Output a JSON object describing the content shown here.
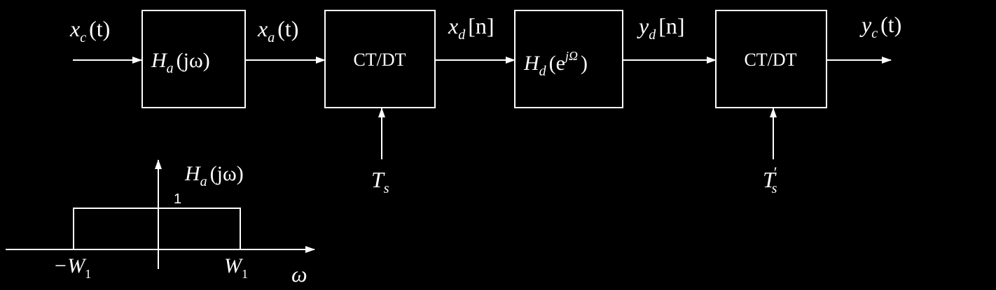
{
  "colors": {
    "background": "#000000",
    "foreground": "#ffffff"
  },
  "signals": {
    "x_c": {
      "main": "x",
      "sub": "c",
      "arg": "(t)"
    },
    "x_a": {
      "main": "x",
      "sub": "a",
      "arg": "(t)"
    },
    "x_d": {
      "main": "x",
      "sub": "d",
      "arg": "[n]"
    },
    "y_d": {
      "main": "y",
      "sub": "d",
      "arg": "[n]"
    },
    "y_c": {
      "main": "y",
      "sub": "c",
      "arg": "(t)"
    }
  },
  "blocks": {
    "analog_filter": {
      "main": "H",
      "sub": "a",
      "arg": "(jω)"
    },
    "ct_dt_1": {
      "label": "CT/DT"
    },
    "digital_filter": {
      "main": "H",
      "sub": "d",
      "open": "(e",
      "sup": "jΩ",
      "close": ")"
    },
    "ct_dt_2": {
      "label": "CT/DT"
    }
  },
  "sampling": {
    "ts1": {
      "main": "T",
      "sub": "s"
    },
    "ts2": {
      "main": "T",
      "prime": "′",
      "sub": "s"
    }
  },
  "response_plot": {
    "title": {
      "main": "H",
      "sub": "a",
      "arg": "(jω)"
    },
    "level_label": "1",
    "left_cutoff": {
      "main": "−W",
      "sub": "1"
    },
    "right_cutoff": {
      "main": "W",
      "sub": "1"
    },
    "axis_label": "ω"
  }
}
